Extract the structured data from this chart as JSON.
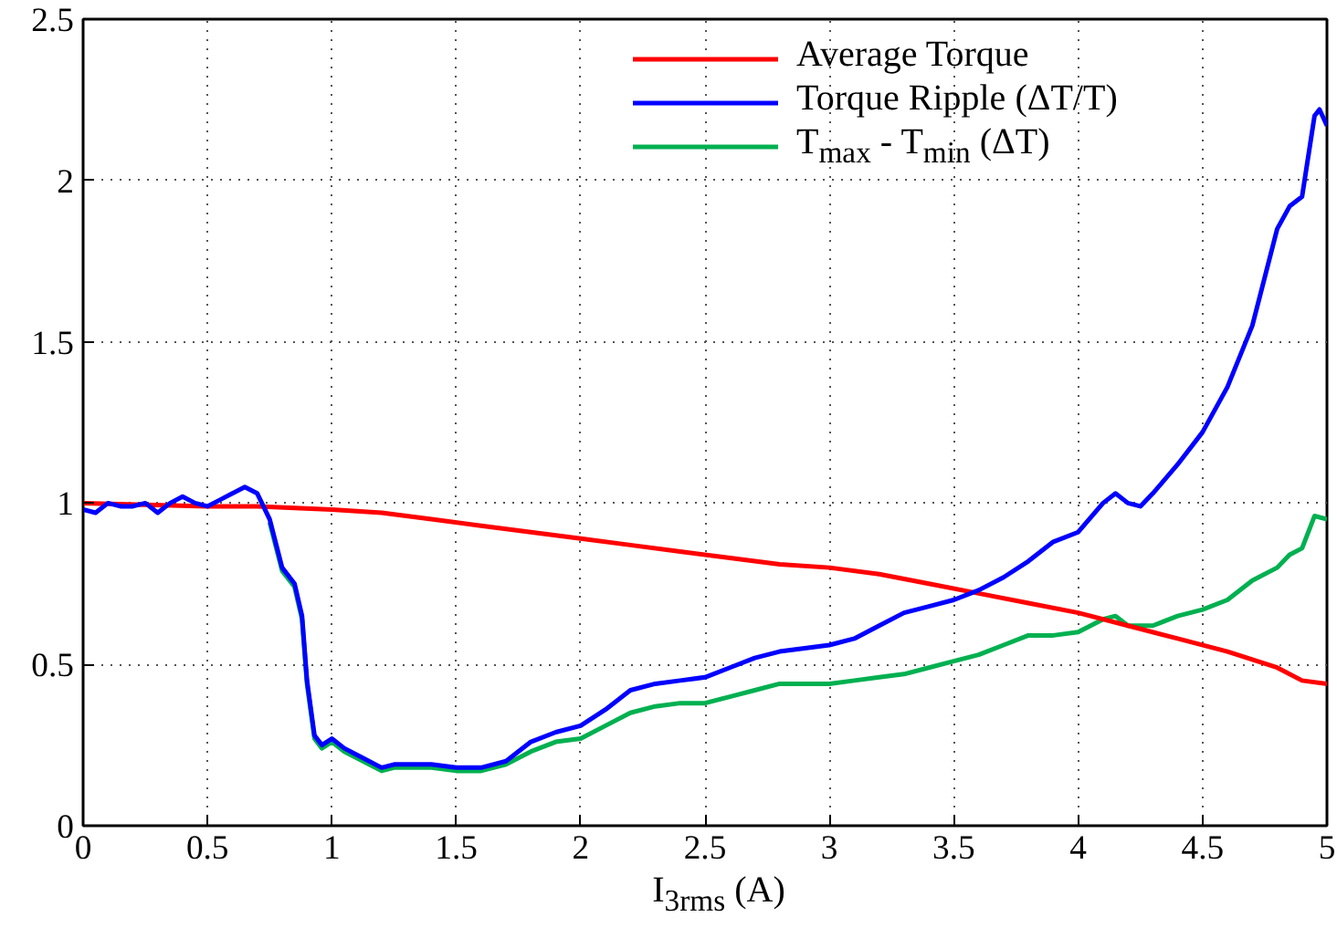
{
  "chart_data": {
    "type": "line",
    "xlabel": "I$_{3rms}$ (A)",
    "xlim": [
      0,
      5
    ],
    "ylim": [
      0,
      2.5
    ],
    "xticks": [
      0,
      0.5,
      1,
      1.5,
      2,
      2.5,
      3,
      3.5,
      4,
      4.5,
      5
    ],
    "yticks": [
      0,
      0.5,
      1,
      1.5,
      2,
      2.5
    ],
    "grid": true,
    "legend": "top right",
    "line_style": "solid",
    "marker": "none",
    "series": [
      {
        "name": "Average Torque",
        "color": "#ff0000",
        "x": [
          0,
          0.5,
          0.7,
          1.0,
          1.2,
          1.4,
          1.6,
          1.8,
          2.0,
          2.2,
          2.4,
          2.6,
          2.8,
          3.0,
          3.2,
          3.4,
          3.6,
          3.8,
          4.0,
          4.2,
          4.4,
          4.6,
          4.8,
          4.9,
          5.0
        ],
        "values": [
          1.0,
          0.99,
          0.99,
          0.98,
          0.97,
          0.95,
          0.93,
          0.91,
          0.89,
          0.87,
          0.85,
          0.83,
          0.81,
          0.8,
          0.78,
          0.75,
          0.72,
          0.69,
          0.66,
          0.62,
          0.58,
          0.54,
          0.49,
          0.45,
          0.44
        ]
      },
      {
        "name": "Torque Ripple (ΔT/T)",
        "color": "#0000ff",
        "x": [
          0,
          0.05,
          0.1,
          0.15,
          0.2,
          0.25,
          0.3,
          0.35,
          0.4,
          0.45,
          0.5,
          0.55,
          0.6,
          0.65,
          0.7,
          0.75,
          0.8,
          0.85,
          0.88,
          0.9,
          0.93,
          0.96,
          1.0,
          1.05,
          1.1,
          1.2,
          1.25,
          1.4,
          1.5,
          1.6,
          1.7,
          1.8,
          1.9,
          2.0,
          2.1,
          2.2,
          2.3,
          2.4,
          2.5,
          2.6,
          2.7,
          2.8,
          2.9,
          3.0,
          3.1,
          3.2,
          3.3,
          3.4,
          3.5,
          3.6,
          3.7,
          3.8,
          3.9,
          4.0,
          4.1,
          4.15,
          4.2,
          4.25,
          4.3,
          4.4,
          4.5,
          4.6,
          4.7,
          4.75,
          4.8,
          4.85,
          4.9,
          4.95,
          4.97,
          5.0
        ],
        "values": [
          0.98,
          0.97,
          1.0,
          0.99,
          0.99,
          1.0,
          0.97,
          1.0,
          1.02,
          1.0,
          0.99,
          1.01,
          1.03,
          1.05,
          1.03,
          0.95,
          0.8,
          0.75,
          0.65,
          0.45,
          0.28,
          0.25,
          0.27,
          0.24,
          0.22,
          0.18,
          0.19,
          0.19,
          0.18,
          0.18,
          0.2,
          0.26,
          0.29,
          0.31,
          0.36,
          0.42,
          0.44,
          0.45,
          0.46,
          0.49,
          0.52,
          0.54,
          0.55,
          0.56,
          0.58,
          0.62,
          0.66,
          0.68,
          0.7,
          0.73,
          0.77,
          0.82,
          0.88,
          0.91,
          1.0,
          1.03,
          1.0,
          0.99,
          1.03,
          1.12,
          1.22,
          1.36,
          1.55,
          1.7,
          1.85,
          1.92,
          1.95,
          2.2,
          2.22,
          2.17
        ]
      },
      {
        "name": "T$_{max}$ - T$_{min}$ (ΔT)",
        "color": "#00b050",
        "x": [
          0.75,
          0.8,
          0.85,
          0.88,
          0.9,
          0.93,
          0.96,
          1.0,
          1.05,
          1.1,
          1.2,
          1.25,
          1.4,
          1.5,
          1.6,
          1.7,
          1.8,
          1.9,
          2.0,
          2.1,
          2.2,
          2.3,
          2.4,
          2.5,
          2.6,
          2.7,
          2.8,
          2.9,
          3.0,
          3.1,
          3.2,
          3.3,
          3.4,
          3.5,
          3.6,
          3.7,
          3.8,
          3.9,
          4.0,
          4.1,
          4.15,
          4.2,
          4.3,
          4.4,
          4.5,
          4.6,
          4.7,
          4.8,
          4.85,
          4.9,
          4.95,
          5.0
        ],
        "values": [
          0.94,
          0.79,
          0.74,
          0.64,
          0.44,
          0.27,
          0.24,
          0.26,
          0.23,
          0.21,
          0.17,
          0.18,
          0.18,
          0.17,
          0.17,
          0.19,
          0.23,
          0.26,
          0.27,
          0.31,
          0.35,
          0.37,
          0.38,
          0.38,
          0.4,
          0.42,
          0.44,
          0.44,
          0.44,
          0.45,
          0.46,
          0.47,
          0.49,
          0.51,
          0.53,
          0.56,
          0.59,
          0.59,
          0.6,
          0.64,
          0.65,
          0.62,
          0.62,
          0.65,
          0.67,
          0.7,
          0.76,
          0.8,
          0.84,
          0.86,
          0.96,
          0.95
        ]
      }
    ]
  }
}
